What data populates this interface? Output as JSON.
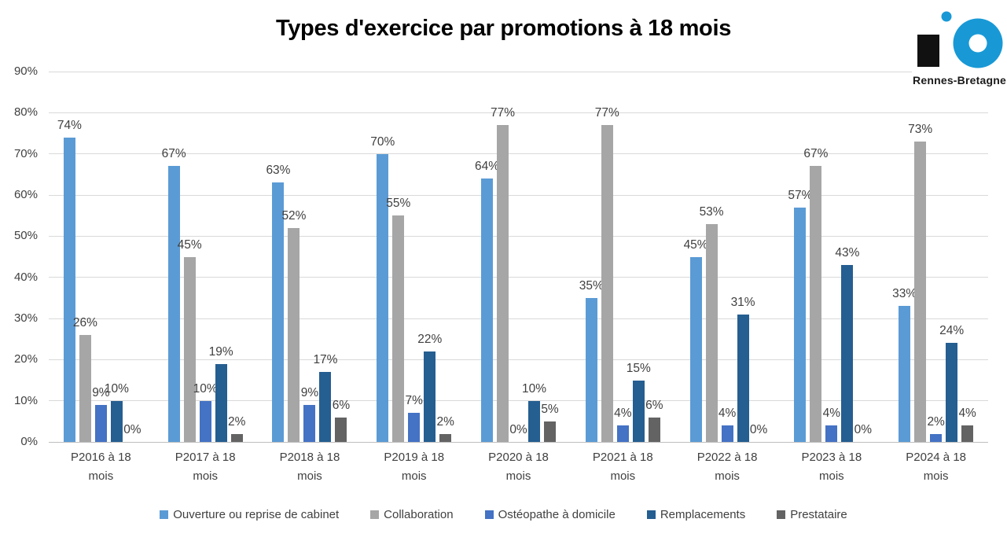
{
  "logo": {
    "text": "Rennes-Bretagne",
    "accent_color": "#1899D6",
    "square_color": "#111111"
  },
  "chart_data": {
    "type": "bar",
    "title": "Types d'exercice par promotions à 18 mois",
    "categories": [
      "P2016 à 18 mois",
      "P2017 à 18 mois",
      "P2018 à 18 mois",
      "P2019 à 18 mois",
      "P2020 à 18 mois",
      "P2021 à 18 mois",
      "P2022 à 18 mois",
      "P2023 à 18 mois",
      "P2024 à 18 mois"
    ],
    "series": [
      {
        "name": "Ouverture ou reprise de cabinet",
        "color": "#5B9BD5",
        "values": [
          74,
          67,
          63,
          70,
          64,
          35,
          45,
          57,
          33
        ]
      },
      {
        "name": "Collaboration",
        "color": "#A6A6A6",
        "values": [
          26,
          45,
          52,
          55,
          77,
          77,
          53,
          67,
          73
        ]
      },
      {
        "name": "Ostéopathe à domicile",
        "color": "#4472C4",
        "values": [
          9,
          10,
          9,
          7,
          0,
          4,
          4,
          4,
          2
        ]
      },
      {
        "name": "Remplacements",
        "color": "#255E91",
        "values": [
          10,
          19,
          17,
          22,
          10,
          15,
          31,
          43,
          24
        ]
      },
      {
        "name": "Prestataire",
        "color": "#636363",
        "values": [
          0,
          2,
          6,
          2,
          5,
          6,
          0,
          0,
          4
        ]
      }
    ],
    "value_label_suffix": "%",
    "ylim": [
      0,
      90
    ],
    "ytick_step": 10,
    "yticks": [
      "0%",
      "10%",
      "20%",
      "30%",
      "40%",
      "50%",
      "60%",
      "70%",
      "80%",
      "90%"
    ],
    "grid": true,
    "legend_position": "bottom"
  }
}
